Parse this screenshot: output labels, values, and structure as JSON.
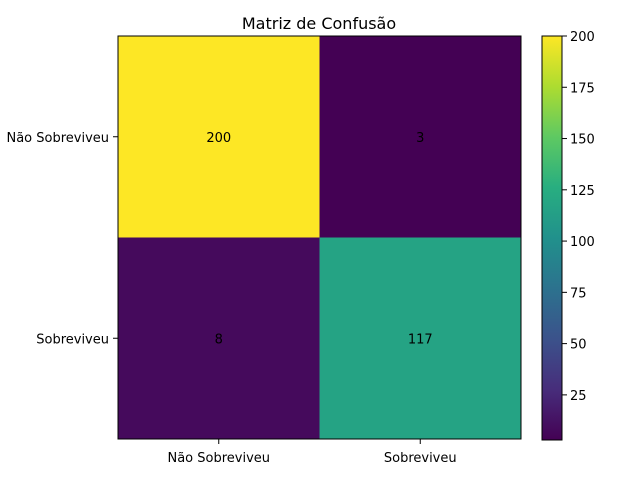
{
  "chart_data": {
    "type": "heatmap",
    "title": "Matriz de Confusão",
    "xlabel": "",
    "ylabel": "",
    "x_categories": [
      "Não Sobreviveu",
      "Sobreviveu"
    ],
    "y_categories": [
      "Não Sobreviveu",
      "Sobreviveu"
    ],
    "values": [
      [
        200,
        3
      ],
      [
        8,
        117
      ]
    ],
    "colormap": "viridis",
    "color_range": [
      3,
      200
    ],
    "colorbar_ticks": [
      25,
      50,
      75,
      100,
      125,
      150,
      175,
      200
    ],
    "grid": false,
    "colorbar_placement": "right"
  }
}
